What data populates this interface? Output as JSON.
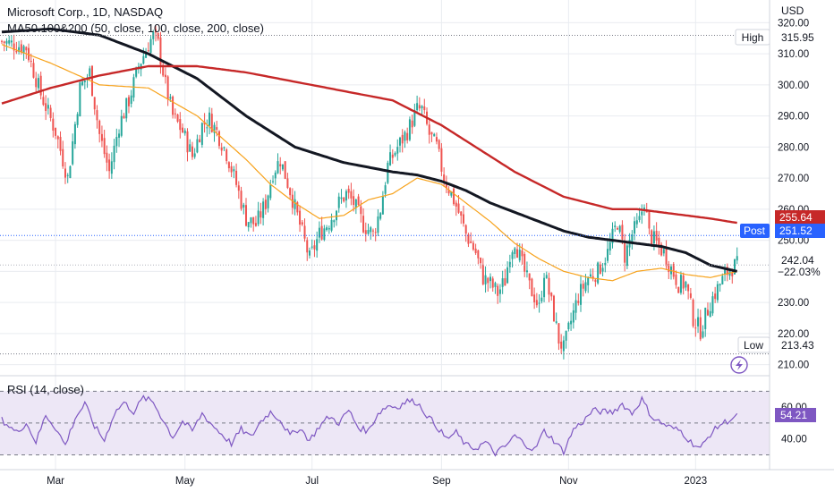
{
  "header": {
    "title": "Microsoft Corp., 1D, NASDAQ",
    "indicator": "MA50.100&200 (50, close, 100, close, 200, close)"
  },
  "price_axis": {
    "currency": "USD"
  },
  "rsi": {
    "label": "RSI (14, close)",
    "value": "54.21"
  },
  "tags": {
    "high_label": "High",
    "high_value": "315.95",
    "low_label": "Low",
    "low_value": "213.43",
    "post_label": "Post",
    "post_value": "251.52",
    "ma200_value": "255.64",
    "last_price": "242.04",
    "last_change": "−22.03%"
  },
  "colors": {
    "up": "#26a69a",
    "down": "#ef5350",
    "ma50": "#f7a21b",
    "ma100": "#131722",
    "ma200": "#c62828",
    "rsi_line": "#7e57c2",
    "rsi_band": "#ede7f6",
    "post_tag": "#2962ff",
    "ma200_tag": "#c62828",
    "grid": "#e9ecf1"
  },
  "icons": {
    "lightning": "lightning-icon"
  },
  "chart_data": [
    {
      "type": "candlestick",
      "title": "Microsoft Corp., 1D, NASDAQ",
      "x_ticks": [
        "Mar",
        "May",
        "Jul",
        "Sep",
        "Nov",
        "2023"
      ],
      "y_ticks": [
        "210.00",
        "220.00",
        "230.00",
        "240.00",
        "250.00",
        "260.00",
        "270.00",
        "280.00",
        "290.00",
        "300.00",
        "310.00",
        "320.00"
      ],
      "ylim": [
        207,
        325
      ],
      "grid": true,
      "price_path": [
        [
          0,
          314
        ],
        [
          10,
          312
        ],
        [
          16,
          297
        ],
        [
          22,
          285
        ],
        [
          27,
          270
        ],
        [
          32,
          299
        ],
        [
          36,
          304
        ],
        [
          40,
          284
        ],
        [
          44,
          272
        ],
        [
          48,
          287
        ],
        [
          52,
          295
        ],
        [
          56,
          306
        ],
        [
          60,
          313
        ],
        [
          62,
          316
        ],
        [
          64,
          313
        ],
        [
          67,
          300
        ],
        [
          70,
          290
        ],
        [
          74,
          285
        ],
        [
          78,
          277
        ],
        [
          82,
          287
        ],
        [
          85,
          289
        ],
        [
          88,
          285
        ],
        [
          92,
          278
        ],
        [
          96,
          268
        ],
        [
          100,
          257
        ],
        [
          104,
          255
        ],
        [
          108,
          262
        ],
        [
          111,
          272
        ],
        [
          114,
          276
        ],
        [
          118,
          266
        ],
        [
          122,
          255
        ],
        [
          126,
          244
        ],
        [
          130,
          252
        ],
        [
          134,
          256
        ],
        [
          138,
          262
        ],
        [
          141,
          265
        ],
        [
          144,
          262
        ],
        [
          148,
          255
        ],
        [
          152,
          252
        ],
        [
          155,
          260
        ],
        [
          158,
          274
        ],
        [
          162,
          280
        ],
        [
          166,
          285
        ],
        [
          170,
          292
        ],
        [
          172,
          292
        ],
        [
          175,
          284
        ],
        [
          178,
          280
        ],
        [
          181,
          270
        ],
        [
          184,
          265
        ],
        [
          187,
          259
        ],
        [
          190,
          252
        ],
        [
          194,
          246
        ],
        [
          197,
          238
        ],
        [
          200,
          236
        ],
        [
          203,
          233
        ],
        [
          206,
          237
        ],
        [
          208,
          246
        ],
        [
          210,
          250
        ],
        [
          213,
          242
        ],
        [
          216,
          235
        ],
        [
          218,
          232
        ],
        [
          220,
          228
        ],
        [
          222,
          240
        ],
        [
          224,
          233
        ],
        [
          226,
          226
        ],
        [
          228,
          218
        ],
        [
          230,
          215
        ],
        [
          233,
          224
        ],
        [
          236,
          232
        ],
        [
          240,
          238
        ],
        [
          244,
          240
        ],
        [
          248,
          246
        ],
        [
          252,
          256
        ],
        [
          255,
          245
        ],
        [
          258,
          252
        ],
        [
          261,
          256
        ],
        [
          263,
          263
        ],
        [
          265,
          252
        ],
        [
          268,
          249
        ],
        [
          271,
          246
        ],
        [
          274,
          241
        ],
        [
          277,
          236
        ],
        [
          280,
          236
        ],
        [
          283,
          225
        ],
        [
          286,
          221
        ],
        [
          290,
          230
        ],
        [
          294,
          236
        ],
        [
          298,
          241
        ],
        [
          301,
          242
        ]
      ],
      "ohlc_summary": {
        "high": 315.95,
        "low": 213.43,
        "last": 242.04,
        "post": 251.52,
        "change_pct": -22.03
      },
      "series": [
        {
          "name": "MA50",
          "values": [
            [
              0,
              313
            ],
            [
              20,
              307
            ],
            [
              40,
              300
            ],
            [
              60,
              299
            ],
            [
              80,
              290
            ],
            [
              100,
              276
            ],
            [
              110,
              268
            ],
            [
              120,
              262
            ],
            [
              130,
              257
            ],
            [
              140,
              258
            ],
            [
              150,
              263
            ],
            [
              160,
              265
            ],
            [
              170,
              270
            ],
            [
              180,
              268
            ],
            [
              190,
              262
            ],
            [
              200,
              256
            ],
            [
              210,
              249
            ],
            [
              220,
              244
            ],
            [
              230,
              240
            ],
            [
              240,
              238
            ],
            [
              250,
              237
            ],
            [
              260,
              240
            ],
            [
              270,
              241
            ],
            [
              280,
              239
            ],
            [
              290,
              238
            ],
            [
              301,
              240
            ]
          ]
        },
        {
          "name": "MA100",
          "values": [
            [
              0,
              317
            ],
            [
              20,
              318
            ],
            [
              40,
              316
            ],
            [
              60,
              310
            ],
            [
              80,
              302
            ],
            [
              100,
              290
            ],
            [
              120,
              280
            ],
            [
              140,
              275
            ],
            [
              160,
              272
            ],
            [
              170,
              271
            ],
            [
              180,
              269
            ],
            [
              190,
              266
            ],
            [
              200,
              262
            ],
            [
              210,
              259
            ],
            [
              220,
              256
            ],
            [
              230,
              253
            ],
            [
              240,
              251
            ],
            [
              250,
              250
            ],
            [
              260,
              249
            ],
            [
              270,
              248
            ],
            [
              280,
              246
            ],
            [
              290,
              242
            ],
            [
              301,
              240
            ]
          ]
        },
        {
          "name": "MA200",
          "values": [
            [
              0,
              294
            ],
            [
              20,
              299
            ],
            [
              40,
              303
            ],
            [
              60,
              306
            ],
            [
              80,
              306
            ],
            [
              100,
              304
            ],
            [
              120,
              301
            ],
            [
              140,
              298
            ],
            [
              160,
              295
            ],
            [
              170,
              291
            ],
            [
              180,
              287
            ],
            [
              190,
              282
            ],
            [
              200,
              277
            ],
            [
              210,
              272
            ],
            [
              220,
              268
            ],
            [
              230,
              264
            ],
            [
              240,
              262
            ],
            [
              250,
              260
            ],
            [
              260,
              260
            ],
            [
              270,
              259
            ],
            [
              280,
              258
            ],
            [
              290,
              257
            ],
            [
              301,
              255.6
            ]
          ]
        }
      ]
    },
    {
      "type": "line",
      "title": "RSI (14, close)",
      "y_ticks": [
        "40.00",
        "60.00"
      ],
      "ylim": [
        28,
        73
      ],
      "bands": [
        30,
        50,
        70
      ],
      "series": [
        {
          "name": "RSI",
          "values": [
            [
              0,
              52
            ],
            [
              6,
              44
            ],
            [
              10,
              50
            ],
            [
              14,
              38
            ],
            [
              18,
              55
            ],
            [
              22,
              47
            ],
            [
              26,
              36
            ],
            [
              30,
              53
            ],
            [
              34,
              62
            ],
            [
              38,
              48
            ],
            [
              42,
              39
            ],
            [
              46,
              56
            ],
            [
              50,
              63
            ],
            [
              54,
              57
            ],
            [
              58,
              66
            ],
            [
              62,
              63
            ],
            [
              66,
              52
            ],
            [
              70,
              41
            ],
            [
              74,
              51
            ],
            [
              78,
              45
            ],
            [
              82,
              56
            ],
            [
              86,
              49
            ],
            [
              90,
              43
            ],
            [
              94,
              37
            ],
            [
              98,
              46
            ],
            [
              102,
              41
            ],
            [
              106,
              51
            ],
            [
              110,
              57
            ],
            [
              114,
              52
            ],
            [
              118,
              42
            ],
            [
              122,
              47
            ],
            [
              126,
              39
            ],
            [
              130,
              48
            ],
            [
              134,
              54
            ],
            [
              138,
              50
            ],
            [
              142,
              58
            ],
            [
              146,
              47
            ],
            [
              150,
              45
            ],
            [
              154,
              56
            ],
            [
              158,
              61
            ],
            [
              162,
              60
            ],
            [
              166,
              64
            ],
            [
              170,
              63
            ],
            [
              174,
              55
            ],
            [
              178,
              48
            ],
            [
              182,
              40
            ],
            [
              186,
              44
            ],
            [
              190,
              36
            ],
            [
              194,
              34
            ],
            [
              198,
              38
            ],
            [
              202,
              31
            ],
            [
              206,
              35
            ],
            [
              210,
              42
            ],
            [
              214,
              37
            ],
            [
              218,
              33
            ],
            [
              222,
              45
            ],
            [
              226,
              39
            ],
            [
              230,
              32
            ],
            [
              234,
              46
            ],
            [
              238,
              51
            ],
            [
              242,
              58
            ],
            [
              246,
              57
            ],
            [
              250,
              57
            ],
            [
              254,
              62
            ],
            [
              258,
              56
            ],
            [
              262,
              65
            ],
            [
              266,
              54
            ],
            [
              270,
              50
            ],
            [
              274,
              47
            ],
            [
              278,
              45
            ],
            [
              282,
              38
            ],
            [
              286,
              34
            ],
            [
              290,
              43
            ],
            [
              294,
              49
            ],
            [
              298,
              52
            ],
            [
              301,
              54.21
            ]
          ]
        }
      ]
    }
  ]
}
